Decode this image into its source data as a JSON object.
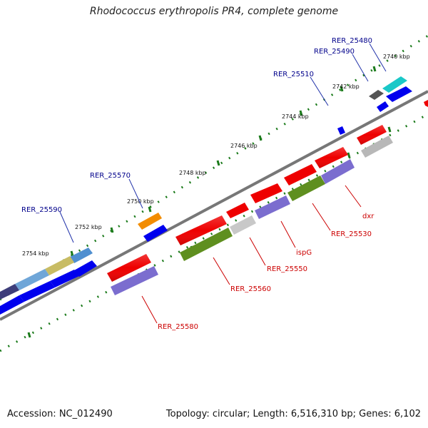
{
  "title": "Rhodococcus erythropolis PR4, complete genome",
  "footer": {
    "accession": "Accession: NC_012490",
    "summary": "Topology: circular; Length: 6,516,310 bp; Genes: 6,102"
  },
  "tick_labels": [
    "2740 kbp",
    "2742 kbp",
    "2744 kbp",
    "2746 kbp",
    "2748 kbp",
    "2750 kbp",
    "2752 kbp",
    "2754 kbp"
  ],
  "gene_labels": {
    "forward": [
      "RER_25480",
      "RER_25490",
      "RER_25510",
      "RER_25570",
      "RER_25590"
    ],
    "reverse": [
      "dxr",
      "RER_25530",
      "ispG",
      "RER_25550",
      "RER_25560",
      "RER_25580"
    ]
  },
  "colors": {
    "forward_label": "#00008b",
    "reverse_label": "#cc0000",
    "tick": "#1a7a1a",
    "backbone": "#777777",
    "forward_cds": "#0000ee",
    "reverse_cds": "#ee0000"
  }
}
